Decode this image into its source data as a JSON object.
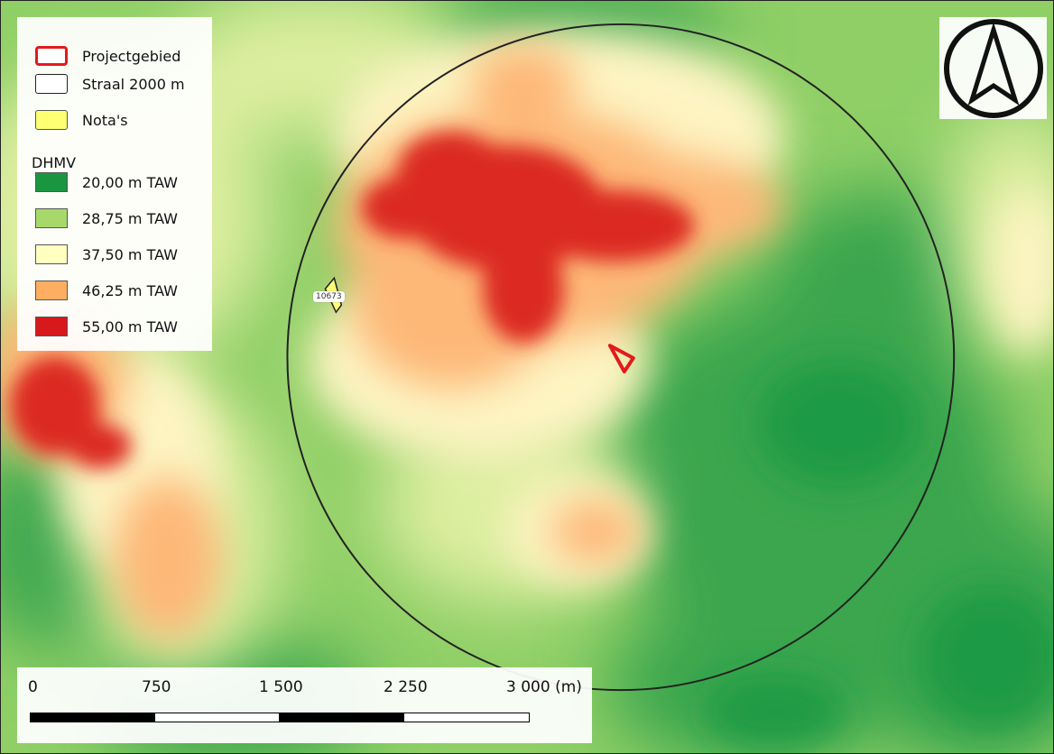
{
  "legend": {
    "items": [
      {
        "label": "Projectgebied",
        "swatch_fill": "#ffffff",
        "swatch_stroke": "#e31a1c"
      },
      {
        "label": "Straal 2000 m",
        "swatch_fill": "#ffffff",
        "swatch_stroke": "#222222"
      },
      {
        "label": "Nota's",
        "swatch_fill": "#ffff73",
        "swatch_stroke": "#555555"
      }
    ],
    "dhmv_title": "DHMV",
    "dhmv_classes": [
      {
        "label": "20,00 m TAW",
        "color": "#1a9641"
      },
      {
        "label": "28,75 m TAW",
        "color": "#a6d96a"
      },
      {
        "label": "37,50 m TAW",
        "color": "#ffffc0"
      },
      {
        "label": "46,25 m TAW",
        "color": "#fdae61"
      },
      {
        "label": "55,00 m TAW",
        "color": "#d7191c"
      }
    ]
  },
  "scalebar": {
    "labels": [
      "0",
      "750",
      "1 500",
      "2 250",
      "3 000 (m)"
    ]
  },
  "note_marker": {
    "label": "10673"
  },
  "map_colors": {
    "low": "#1a9641",
    "mid_low": "#a6d96a",
    "mid": "#ffffc0",
    "mid_high": "#fdae61",
    "high": "#d7191c",
    "project_outline": "#e31a1c",
    "buffer_outline": "#222222"
  },
  "north_arrow": {
    "icon": "north-arrow-icon"
  }
}
